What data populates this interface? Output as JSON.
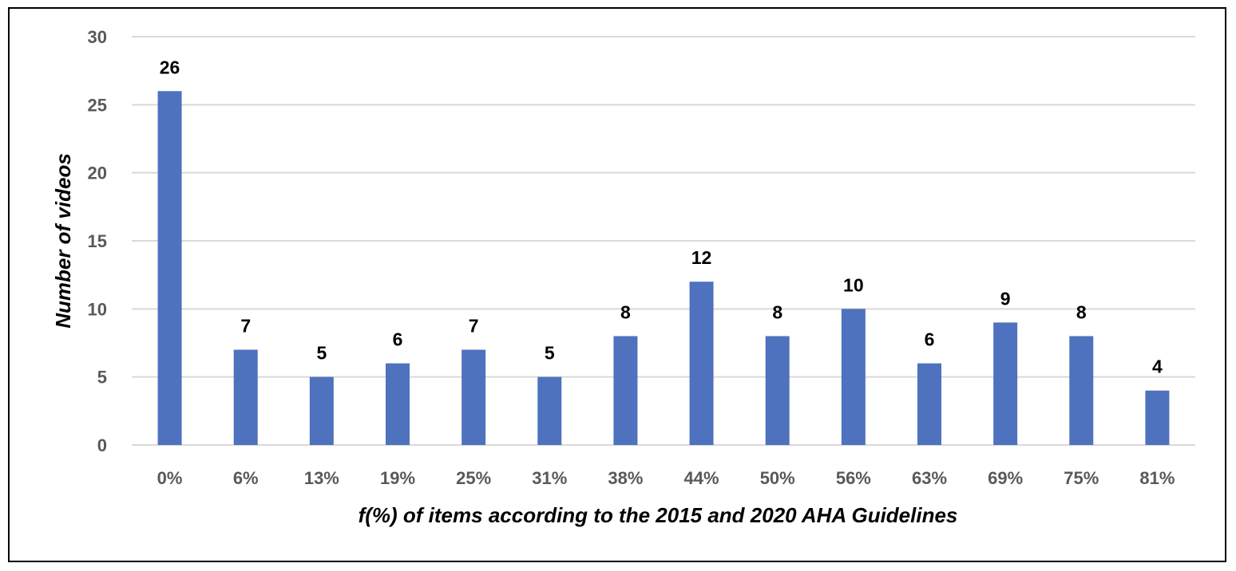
{
  "chart_data": {
    "type": "bar",
    "categories": [
      "0%",
      "6%",
      "13%",
      "19%",
      "25%",
      "31%",
      "38%",
      "44%",
      "50%",
      "56%",
      "63%",
      "69%",
      "75%",
      "81%"
    ],
    "values": [
      26,
      7,
      5,
      6,
      7,
      5,
      8,
      12,
      8,
      10,
      6,
      9,
      8,
      4
    ],
    "xlabel": "f(%) of items according to the 2015 and 2020 AHA Guidelines",
    "ylabel": "Number of videos",
    "ylim": [
      0,
      30
    ],
    "yticks": [
      0,
      5,
      10,
      15,
      20,
      25,
      30
    ],
    "grid": true,
    "legend": "none",
    "bar_color": "#4F72BE",
    "grid_color": "#D9D9D9"
  }
}
